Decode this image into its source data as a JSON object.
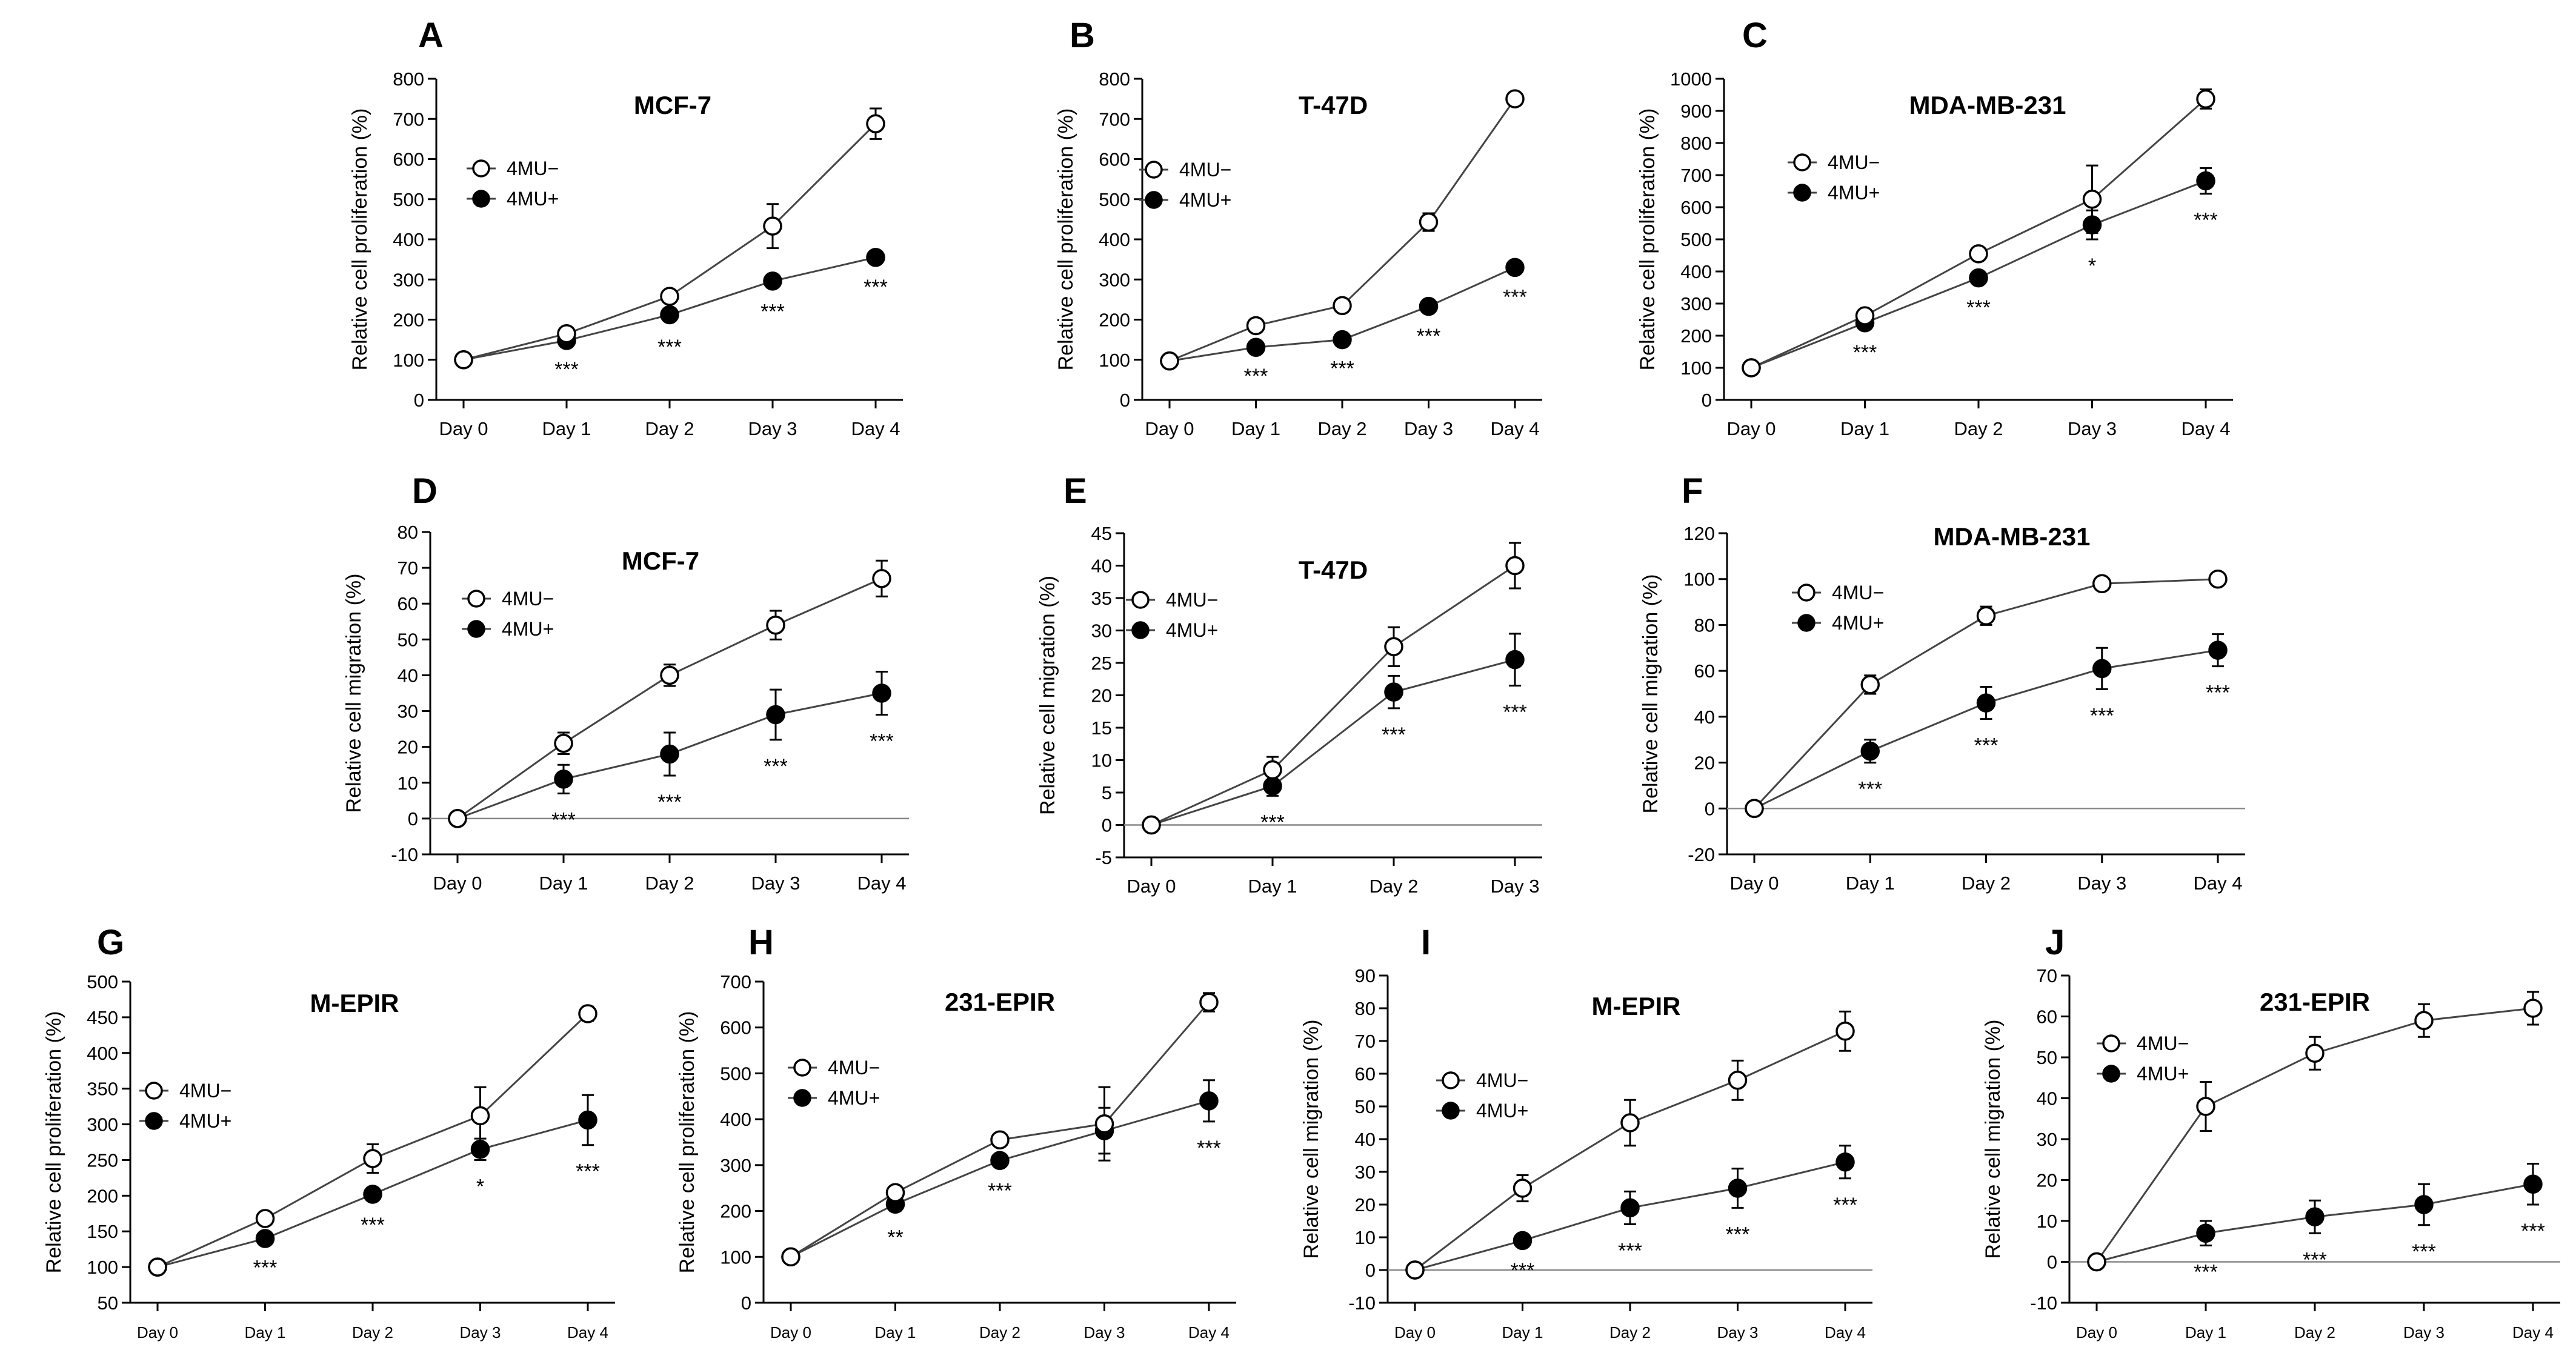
{
  "chart_data": [
    {
      "id": "A",
      "type": "line",
      "letter": "A",
      "title": "MCF-7",
      "ylabel": "Relative cell proliferation (%)",
      "xlabel": "",
      "categories": [
        "Day 0",
        "Day 1",
        "Day 2",
        "Day 3",
        "Day 4"
      ],
      "ylim": [
        0,
        800
      ],
      "yticks": [
        0,
        100,
        200,
        300,
        400,
        500,
        600,
        700,
        800
      ],
      "zero_line": false,
      "series": [
        {
          "name": "4MU−",
          "marker": "open",
          "values": [
            100,
            165,
            258,
            433,
            688
          ],
          "errors": [
            0,
            6,
            10,
            55,
            38
          ]
        },
        {
          "name": "4MU+",
          "marker": "filled",
          "values": [
            100,
            148,
            212,
            296,
            355
          ],
          "errors": [
            0,
            6,
            14,
            10,
            8
          ]
        }
      ],
      "significance": [
        "",
        "***",
        "***",
        "***",
        "***"
      ]
    },
    {
      "id": "B",
      "type": "line",
      "letter": "B",
      "title": "T-47D",
      "ylabel": "Relative cell proliferation (%)",
      "xlabel": "",
      "categories": [
        "Day 0",
        "Day 1",
        "Day 2",
        "Day 3",
        "Day 4"
      ],
      "ylim": [
        0,
        800
      ],
      "yticks": [
        0,
        100,
        200,
        300,
        400,
        500,
        600,
        700,
        800
      ],
      "zero_line": false,
      "series": [
        {
          "name": "4MU−",
          "marker": "open",
          "values": [
            97,
            185,
            235,
            443,
            750
          ],
          "errors": [
            0,
            8,
            8,
            22,
            15
          ]
        },
        {
          "name": "4MU+",
          "marker": "filled",
          "values": [
            97,
            131,
            150,
            233,
            330
          ],
          "errors": [
            0,
            6,
            6,
            8,
            8
          ]
        }
      ],
      "significance": [
        "",
        "***",
        "***",
        "***",
        "***"
      ]
    },
    {
      "id": "C",
      "type": "line",
      "letter": "C",
      "title": "MDA-MB-231",
      "ylabel": "Relative cell proliferation (%)",
      "xlabel": "",
      "categories": [
        "Day 0",
        "Day 1",
        "Day 2",
        "Day 3",
        "Day 4"
      ],
      "ylim": [
        0,
        1000
      ],
      "yticks": [
        0,
        100,
        200,
        300,
        400,
        500,
        600,
        700,
        800,
        900,
        1000
      ],
      "zero_line": false,
      "series": [
        {
          "name": "4MU−",
          "marker": "open",
          "values": [
            100,
            262,
            455,
            625,
            937
          ],
          "errors": [
            0,
            10,
            10,
            105,
            30
          ]
        },
        {
          "name": "4MU+",
          "marker": "filled",
          "values": [
            100,
            240,
            380,
            545,
            682
          ],
          "errors": [
            0,
            10,
            10,
            45,
            40
          ]
        }
      ],
      "significance": [
        "",
        "***",
        "***",
        "*",
        "***"
      ]
    },
    {
      "id": "D",
      "type": "line",
      "letter": "D",
      "title": "MCF-7",
      "ylabel": "Relative cell migration (%)",
      "xlabel": "",
      "categories": [
        "Day 0",
        "Day 1",
        "Day 2",
        "Day 3",
        "Day 4"
      ],
      "ylim": [
        -10,
        80
      ],
      "yticks": [
        -10,
        0,
        10,
        20,
        30,
        40,
        50,
        60,
        70,
        80
      ],
      "zero_line": true,
      "series": [
        {
          "name": "4MU−",
          "marker": "open",
          "values": [
            0,
            21,
            40,
            54,
            67
          ],
          "errors": [
            0,
            3,
            3,
            4,
            5
          ]
        },
        {
          "name": "4MU+",
          "marker": "filled",
          "values": [
            0,
            11,
            18,
            29,
            35
          ],
          "errors": [
            0,
            4,
            6,
            7,
            6
          ]
        }
      ],
      "significance": [
        "",
        "***",
        "***",
        "***",
        "***"
      ]
    },
    {
      "id": "E",
      "type": "line",
      "letter": "E",
      "title": "T-47D",
      "ylabel": "Relative cell migration (%)",
      "xlabel": "",
      "categories": [
        "Day 0",
        "Day 1",
        "Day 2",
        "Day 3"
      ],
      "ylim": [
        -5,
        45
      ],
      "yticks": [
        -5,
        0,
        5,
        10,
        15,
        20,
        25,
        30,
        35,
        40,
        45
      ],
      "zero_line": true,
      "series": [
        {
          "name": "4MU−",
          "marker": "open",
          "values": [
            0,
            8.5,
            27.5,
            40
          ],
          "errors": [
            0,
            2,
            3,
            3.5
          ]
        },
        {
          "name": "4MU+",
          "marker": "filled",
          "values": [
            0,
            6,
            20.5,
            25.5
          ],
          "errors": [
            0,
            1.5,
            2.5,
            4
          ]
        }
      ],
      "significance": [
        "",
        "***",
        "***",
        "***"
      ]
    },
    {
      "id": "F",
      "type": "line",
      "letter": "F",
      "title": "MDA-MB-231",
      "ylabel": "Relative cell migration (%)",
      "xlabel": "",
      "categories": [
        "Day 0",
        "Day 1",
        "Day 2",
        "Day 3",
        "Day 4"
      ],
      "ylim": [
        -20,
        120
      ],
      "yticks": [
        -20,
        0,
        20,
        40,
        60,
        80,
        100,
        120
      ],
      "zero_line": true,
      "series": [
        {
          "name": "4MU−",
          "marker": "open",
          "values": [
            0,
            54,
            84,
            98,
            100
          ],
          "errors": [
            0,
            4,
            4,
            1,
            1
          ]
        },
        {
          "name": "4MU+",
          "marker": "filled",
          "values": [
            0,
            25,
            46,
            61,
            69
          ],
          "errors": [
            0,
            5,
            7,
            9,
            7
          ]
        }
      ],
      "significance": [
        "",
        "***",
        "***",
        "***",
        "***"
      ]
    },
    {
      "id": "G",
      "type": "line",
      "letter": "G",
      "title": "M-EPIR",
      "ylabel": "Relative cell proliferation (%)",
      "xlabel": "",
      "categories": [
        "Day 0",
        "Day 1",
        "Day 2",
        "Day 3",
        "Day 4"
      ],
      "ylim": [
        50,
        500
      ],
      "yticks": [
        50,
        100,
        150,
        200,
        250,
        300,
        350,
        400,
        450,
        500
      ],
      "zero_line": false,
      "series": [
        {
          "name": "4MU−",
          "marker": "open",
          "values": [
            100,
            168,
            252,
            312,
            455
          ],
          "errors": [
            0,
            4,
            20,
            40,
            10
          ]
        },
        {
          "name": "4MU+",
          "marker": "filled",
          "values": [
            100,
            140,
            202,
            265,
            306
          ],
          "errors": [
            0,
            4,
            6,
            15,
            35
          ]
        }
      ],
      "significance": [
        "",
        "***",
        "***",
        "*",
        "***"
      ]
    },
    {
      "id": "H",
      "type": "line",
      "letter": "H",
      "title": "231-EPIR",
      "ylabel": "Relative cell proliferation (%)",
      "xlabel": "",
      "categories": [
        "Day 0",
        "Day 1",
        "Day 2",
        "Day 3",
        "Day 4"
      ],
      "ylim": [
        0,
        700
      ],
      "yticks": [
        0,
        100,
        200,
        300,
        400,
        500,
        600,
        700
      ],
      "zero_line": false,
      "series": [
        {
          "name": "4MU−",
          "marker": "open",
          "values": [
            100,
            240,
            355,
            390,
            655
          ],
          "errors": [
            0,
            8,
            6,
            80,
            20
          ]
        },
        {
          "name": "4MU+",
          "marker": "filled",
          "values": [
            100,
            215,
            310,
            375,
            440
          ],
          "errors": [
            0,
            15,
            8,
            50,
            45
          ]
        }
      ],
      "significance": [
        "",
        "**",
        "***",
        "",
        "***"
      ]
    },
    {
      "id": "I",
      "type": "line",
      "letter": "I",
      "title": "M-EPIR",
      "ylabel": "Relative cell migration (%)",
      "xlabel": "",
      "categories": [
        "Day 0",
        "Day 1",
        "Day 2",
        "Day 3",
        "Day 4"
      ],
      "ylim": [
        -10,
        90
      ],
      "yticks": [
        -10,
        0,
        10,
        20,
        30,
        40,
        50,
        60,
        70,
        80,
        90
      ],
      "zero_line": true,
      "series": [
        {
          "name": "4MU−",
          "marker": "open",
          "values": [
            0,
            25,
            45,
            58,
            73
          ],
          "errors": [
            0,
            4,
            7,
            6,
            6
          ]
        },
        {
          "name": "4MU+",
          "marker": "filled",
          "values": [
            0,
            9,
            19,
            25,
            33
          ],
          "errors": [
            0,
            1,
            5,
            6,
            5
          ]
        }
      ],
      "significance": [
        "",
        "***",
        "***",
        "***",
        "***"
      ]
    },
    {
      "id": "J",
      "type": "line",
      "letter": "J",
      "title": "231-EPIR",
      "ylabel": "Relative cell migration (%)",
      "xlabel": "",
      "categories": [
        "Day 0",
        "Day 1",
        "Day 2",
        "Day 3",
        "Day 4"
      ],
      "ylim": [
        -10,
        70
      ],
      "yticks": [
        -10,
        0,
        10,
        20,
        30,
        40,
        50,
        60,
        70
      ],
      "zero_line": true,
      "series": [
        {
          "name": "4MU−",
          "marker": "open",
          "values": [
            0,
            38,
            51,
            59,
            62
          ],
          "errors": [
            0,
            6,
            4,
            4,
            4
          ]
        },
        {
          "name": "4MU+",
          "marker": "filled",
          "values": [
            0,
            7,
            11,
            14,
            19
          ],
          "errors": [
            0,
            3,
            4,
            5,
            5
          ]
        }
      ],
      "significance": [
        "",
        "***",
        "***",
        "***",
        "***"
      ]
    }
  ]
}
